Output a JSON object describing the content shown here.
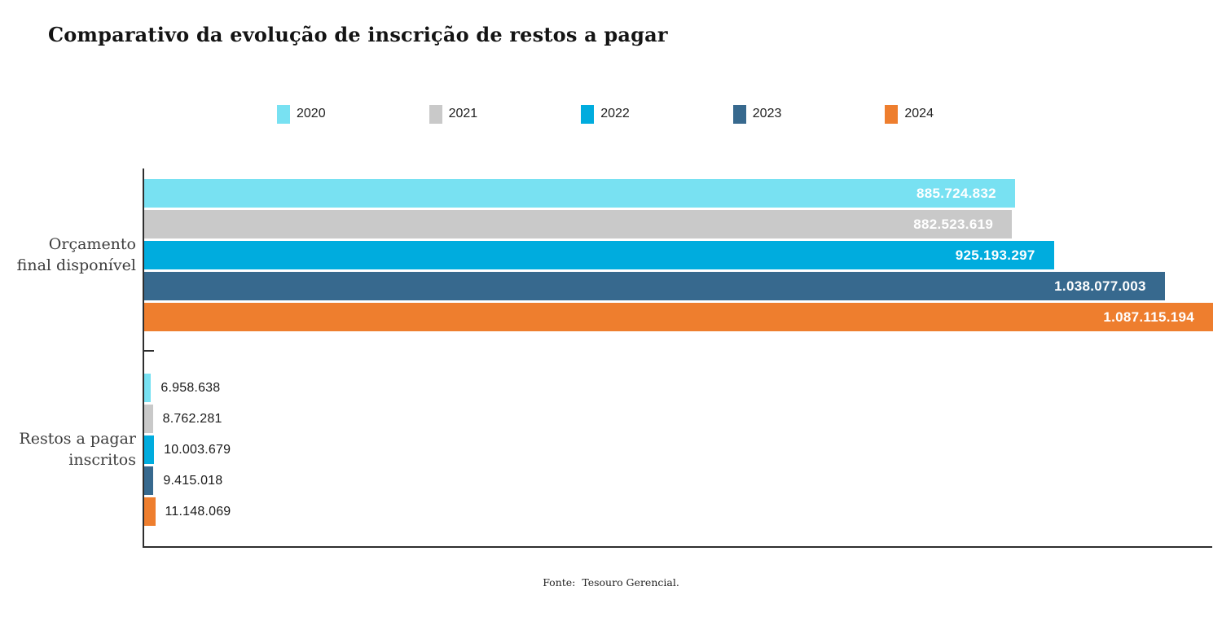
{
  "title": "Comparativo da evolução de inscrição de restos a pagar",
  "footer": "Fonte:  Tesouro Gerencial.",
  "colors": {
    "year_2020": "#78E1F2",
    "year_2021": "#C9C9C9",
    "year_2022": "#00ACDE",
    "year_2023": "#37698E",
    "year_2024": "#EE7E2E",
    "axis": "#2e2e2e",
    "value_label_inside": "#ffffff",
    "value_label_outside": "#1a1a1a"
  },
  "chart_data": {
    "type": "bar",
    "orientation": "horizontal",
    "title": "Comparativo da evolução de inscrição de restos a pagar",
    "categories": [
      "Orçamento final disponível",
      "Restos a pagar inscritos"
    ],
    "categories_display": [
      "Orçamento\nfinal disponível",
      "Restos a pagar\ninscritos"
    ],
    "series": [
      {
        "name": "2020",
        "color": "#78E1F2",
        "values": [
          885724832,
          6958638
        ],
        "labels": [
          "885.724.832",
          "6.958.638"
        ]
      },
      {
        "name": "2021",
        "color": "#C9C9C9",
        "values": [
          882523619,
          8762281
        ],
        "labels": [
          "882.523.619",
          "8.762.281"
        ]
      },
      {
        "name": "2022",
        "color": "#00ACDE",
        "values": [
          925193297,
          10003679
        ],
        "labels": [
          "925.193.297",
          "10.003.679"
        ]
      },
      {
        "name": "2023",
        "color": "#37698E",
        "values": [
          1038077003,
          9415018
        ],
        "labels": [
          "1.038.077.003",
          "9.415.018"
        ]
      },
      {
        "name": "2024",
        "color": "#EE7E2E",
        "values": [
          1087115194,
          11148069
        ],
        "labels": [
          "1.087.115.194",
          "11.148.069"
        ]
      }
    ],
    "xlim": [
      0,
      1087115194
    ],
    "grid": false,
    "legend_position": "top",
    "value_label_placement": [
      "inside-end",
      "outside-end"
    ],
    "source_note": "Fonte:  Tesouro Gerencial."
  }
}
